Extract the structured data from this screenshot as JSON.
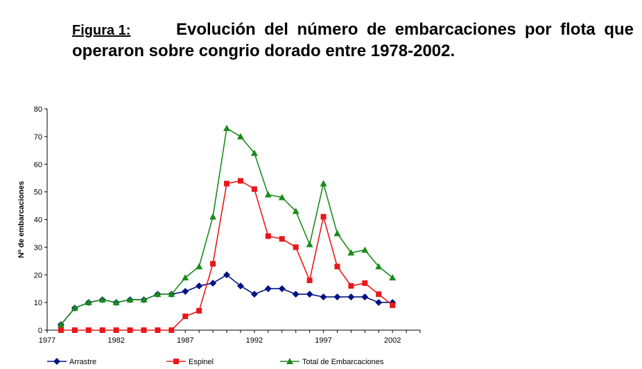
{
  "heading": {
    "label": "Figura 1:",
    "title_line1": "Evolución del número de embarcaciones por flota que",
    "title_line2": "operaron sobre congrio dorado entre 1978-2002."
  },
  "chart_data": {
    "type": "line",
    "title": "Evolución del número de embarcaciones por flota que operaron sobre congrio dorado entre 1978-2002.",
    "xlabel": "",
    "ylabel": "Nº de embarcaciones",
    "xlim": [
      1977,
      2004
    ],
    "ylim": [
      0,
      80
    ],
    "xticks": [
      1977,
      1982,
      1987,
      1992,
      1997,
      2002
    ],
    "yticks": [
      0,
      10,
      20,
      30,
      40,
      50,
      60,
      70,
      80
    ],
    "grid": false,
    "legend_position": "bottom",
    "x": [
      1978,
      1979,
      1980,
      1981,
      1982,
      1983,
      1984,
      1985,
      1986,
      1987,
      1988,
      1989,
      1990,
      1991,
      1992,
      1993,
      1994,
      1995,
      1996,
      1997,
      1998,
      1999,
      2000,
      2001,
      2002
    ],
    "series": [
      {
        "name": "Arrastre",
        "color": "#00137F",
        "marker": "diamond",
        "values": [
          2,
          8,
          10,
          11,
          10,
          11,
          11,
          13,
          13,
          14,
          16,
          17,
          20,
          16,
          13,
          15,
          15,
          13,
          13,
          12,
          12,
          12,
          12,
          10,
          10
        ]
      },
      {
        "name": "Espinel",
        "color": "#E8181A",
        "marker": "square",
        "values": [
          0,
          0,
          0,
          0,
          0,
          0,
          0,
          0,
          0,
          5,
          7,
          24,
          53,
          54,
          51,
          34,
          33,
          30,
          18,
          41,
          23,
          16,
          17,
          13,
          9
        ]
      },
      {
        "name": "Total de Embarcaciones",
        "color": "#1A8A1A",
        "marker": "triangle",
        "values": [
          2,
          8,
          10,
          11,
          10,
          11,
          11,
          13,
          13,
          19,
          23,
          41,
          73,
          70,
          64,
          49,
          48,
          43,
          31,
          53,
          35,
          28,
          29,
          23,
          19
        ]
      }
    ]
  }
}
